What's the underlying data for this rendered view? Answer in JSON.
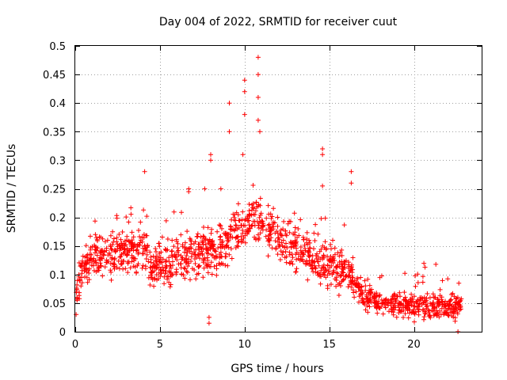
{
  "chart_data": {
    "type": "scatter",
    "title": "Day 004 of 2022, SRMTID for receiver cuut",
    "xlabel": "GPS time / hours",
    "ylabel": "SRMTID / TECUs",
    "xlim": [
      0,
      24
    ],
    "ylim": [
      0,
      0.5
    ],
    "xticks": [
      0,
      5,
      10,
      15,
      20
    ],
    "xtick_labels": [
      "0",
      "5",
      "10",
      "15",
      "20"
    ],
    "yticks": [
      0,
      0.05,
      0.1,
      0.15,
      0.2,
      0.25,
      0.3,
      0.35,
      0.4,
      0.45,
      0.5
    ],
    "ytick_labels": [
      "0",
      "0.05",
      "0.1",
      "0.15",
      "0.2",
      "0.25",
      "0.3",
      "0.35",
      "0.4",
      "0.45",
      "0.5"
    ],
    "grid": true,
    "marker": "plus",
    "color": "#ff0000",
    "series": [
      {
        "name": "SRMTID",
        "trend": [
          [
            0,
            0.07
          ],
          [
            0.5,
            0.11
          ],
          [
            1,
            0.13
          ],
          [
            2,
            0.13
          ],
          [
            3,
            0.14
          ],
          [
            4,
            0.15
          ],
          [
            4.5,
            0.12
          ],
          [
            5.5,
            0.12
          ],
          [
            6.5,
            0.13
          ],
          [
            7.5,
            0.14
          ],
          [
            8.5,
            0.14
          ],
          [
            9.5,
            0.17
          ],
          [
            10.5,
            0.2
          ],
          [
            11.5,
            0.18
          ],
          [
            12.5,
            0.15
          ],
          [
            13.5,
            0.14
          ],
          [
            14.5,
            0.12
          ],
          [
            15.5,
            0.11
          ],
          [
            16.3,
            0.1
          ],
          [
            17,
            0.06
          ],
          [
            18,
            0.05
          ],
          [
            19,
            0.05
          ],
          [
            20,
            0.045
          ],
          [
            21,
            0.045
          ],
          [
            22,
            0.04
          ],
          [
            22.8,
            0.04
          ]
        ],
        "spread": 0.035,
        "samples": 1500,
        "notable_points": [
          {
            "x": 10.8,
            "y": 0.48
          },
          {
            "x": 10.8,
            "y": 0.45
          },
          {
            "x": 10.0,
            "y": 0.44
          },
          {
            "x": 10.0,
            "y": 0.42
          },
          {
            "x": 10.8,
            "y": 0.41
          },
          {
            "x": 9.1,
            "y": 0.4
          },
          {
            "x": 10.0,
            "y": 0.38
          },
          {
            "x": 10.8,
            "y": 0.37
          },
          {
            "x": 9.1,
            "y": 0.35
          },
          {
            "x": 10.9,
            "y": 0.35
          },
          {
            "x": 14.6,
            "y": 0.32
          },
          {
            "x": 14.6,
            "y": 0.31
          },
          {
            "x": 8.0,
            "y": 0.31
          },
          {
            "x": 9.9,
            "y": 0.31
          },
          {
            "x": 4.1,
            "y": 0.28
          },
          {
            "x": 16.3,
            "y": 0.28
          },
          {
            "x": 16.3,
            "y": 0.26
          },
          {
            "x": 14.6,
            "y": 0.255
          },
          {
            "x": 6.7,
            "y": 0.25
          },
          {
            "x": 6.7,
            "y": 0.245
          },
          {
            "x": 8.0,
            "y": 0.3
          },
          {
            "x": 8.6,
            "y": 0.25
          },
          {
            "x": 7.9,
            "y": 0.025
          },
          {
            "x": 7.9,
            "y": 0.015
          },
          {
            "x": 0.05,
            "y": 0.03
          },
          {
            "x": 22.6,
            "y": 0.0
          }
        ]
      }
    ]
  }
}
